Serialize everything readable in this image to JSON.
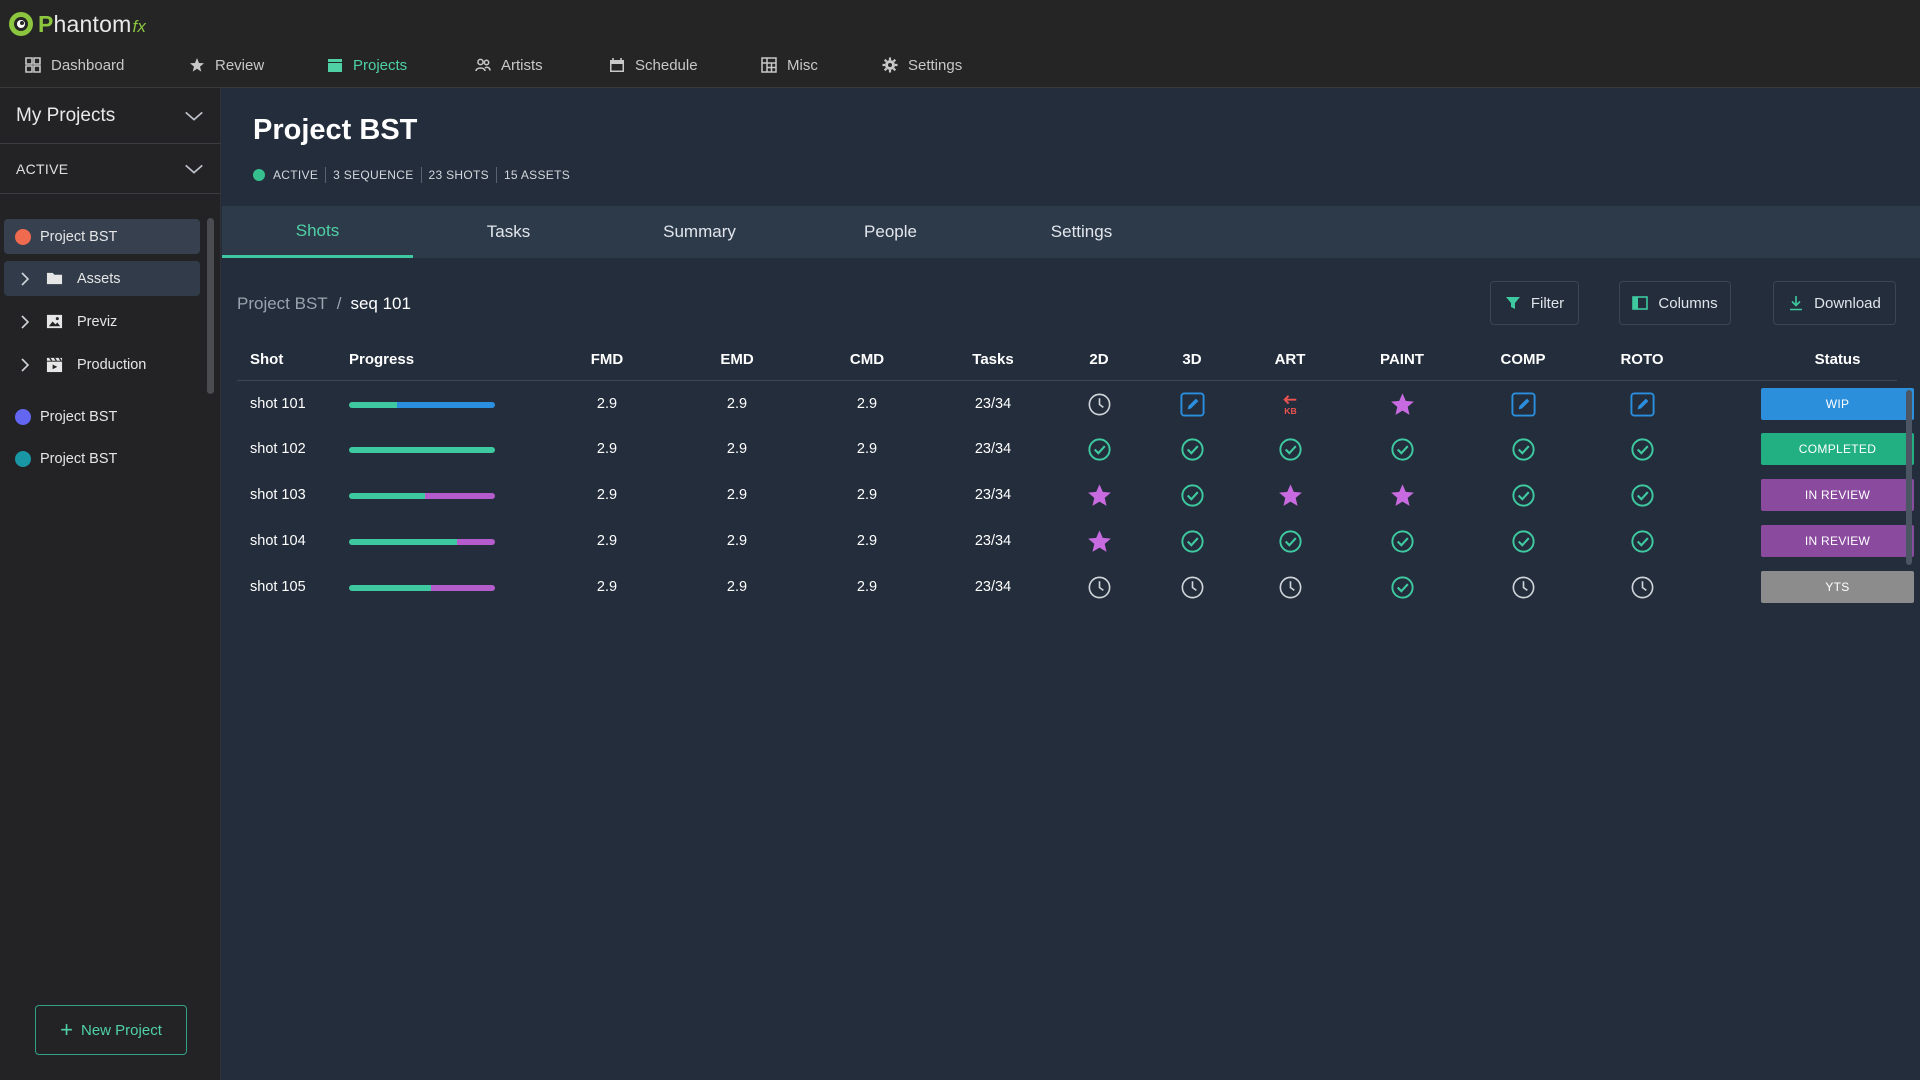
{
  "app": {
    "logo_letter": "P",
    "logo_text": "hantom",
    "logo_suffix": "fx"
  },
  "nav": [
    {
      "label": "Dashboard",
      "icon": "dashboard-icon"
    },
    {
      "label": "Review",
      "icon": "star-icon"
    },
    {
      "label": "Projects",
      "icon": "clapperboard-icon",
      "active": true
    },
    {
      "label": "Artists",
      "icon": "people-icon"
    },
    {
      "label": "Schedule",
      "icon": "calendar-icon"
    },
    {
      "label": "Misc",
      "icon": "grid-icon"
    },
    {
      "label": "Settings",
      "icon": "gear-icon"
    }
  ],
  "sidebar": {
    "my_projects": "My Projects",
    "active_filter": "ACTIVE",
    "projects": [
      {
        "label": "Project BST",
        "color": "#ef6a4f"
      },
      {
        "label": "Project BST",
        "color": "#6366f1"
      },
      {
        "label": "Project BST",
        "color": "#1997a5"
      }
    ],
    "folders": [
      {
        "label": "Assets",
        "icon": "folder-icon"
      },
      {
        "label": "Previz",
        "icon": "image-icon"
      },
      {
        "label": "Production",
        "icon": "clapperboard-icon"
      }
    ],
    "new_project": "New Project"
  },
  "project": {
    "title": "Project BST",
    "status": "ACTIVE",
    "sequences": "3 SEQUENCE",
    "shots": "23 SHOTS",
    "assets": "15 ASSETS"
  },
  "tabs": [
    "Shots",
    "Tasks",
    "Summary",
    "People",
    "Settings"
  ],
  "breadcrumb": {
    "root": "Project BST",
    "separator": "/",
    "current": "seq 101"
  },
  "toolbar": {
    "filter": "Filter",
    "columns": "Columns",
    "download": "Download"
  },
  "table": {
    "headers": [
      "Shot",
      "Progress",
      "FMD",
      "EMD",
      "CMD",
      "Tasks",
      "2D",
      "3D",
      "ART",
      "PAINT",
      "COMP",
      "ROTO",
      "Status"
    ],
    "rows": [
      {
        "shot": "shot 101",
        "progress": [
          0.33,
          0.67
        ],
        "second_color": "#2b8fe0",
        "fmd": "2.9",
        "emd": "2.9",
        "cmd": "2.9",
        "tasks": "23/34",
        "cells": [
          "clock",
          "edit",
          "kickback",
          "star",
          "edit",
          "edit"
        ],
        "status": "WIP",
        "status_color": "#2b8fdb"
      },
      {
        "shot": "shot 102",
        "progress": [
          1.0,
          0.0
        ],
        "second_color": "#b55ccc",
        "fmd": "2.9",
        "emd": "2.9",
        "cmd": "2.9",
        "tasks": "23/34",
        "cells": [
          "check",
          "check",
          "check",
          "check",
          "check",
          "check"
        ],
        "status": "COMPLETED",
        "status_color": "#22b083"
      },
      {
        "shot": "shot 103",
        "progress": [
          0.52,
          0.48
        ],
        "second_color": "#b55ccc",
        "fmd": "2.9",
        "emd": "2.9",
        "cmd": "2.9",
        "tasks": "23/34",
        "cells": [
          "star",
          "check",
          "star",
          "star",
          "check",
          "check"
        ],
        "status": "IN REVIEW",
        "status_color": "#8a4a9e"
      },
      {
        "shot": "shot 104",
        "progress": [
          0.74,
          0.26
        ],
        "second_color": "#b55ccc",
        "fmd": "2.9",
        "emd": "2.9",
        "cmd": "2.9",
        "tasks": "23/34",
        "cells": [
          "star",
          "check",
          "check",
          "check",
          "check",
          "check"
        ],
        "status": "IN REVIEW",
        "status_color": "#8a4a9e"
      },
      {
        "shot": "shot 105",
        "progress": [
          0.56,
          0.44
        ],
        "second_color": "#b55ccc",
        "fmd": "2.9",
        "emd": "2.9",
        "cmd": "2.9",
        "tasks": "23/34",
        "cells": [
          "clock",
          "clock",
          "clock",
          "check",
          "clock",
          "clock"
        ],
        "status": "YTS",
        "status_color": "#8c8c8c"
      }
    ],
    "kickback_label": "KB"
  },
  "colors": {
    "accent": "#4fd1a5",
    "check": "#3ec9a0",
    "star": "#c86be0",
    "edit": "#2b8fe0",
    "kickback": "#ef5350",
    "clock": "#d0d4da"
  }
}
